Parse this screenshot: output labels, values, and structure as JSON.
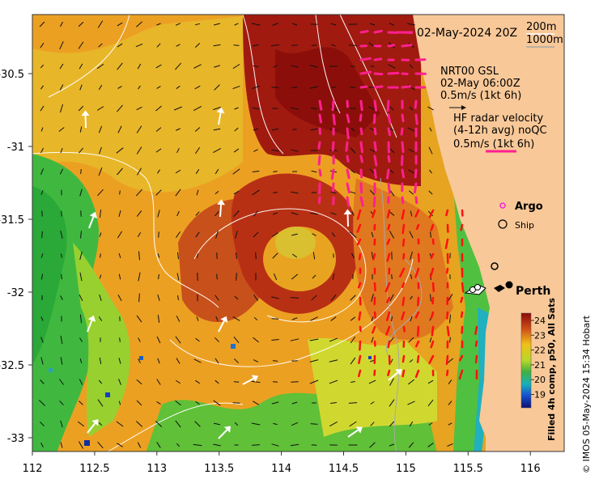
{
  "map": {
    "date_label": "02-May-2024 20Z",
    "contours": [
      "200m",
      "1000m"
    ],
    "model_label": [
      "NRT00 GSL",
      "02-May 06:00Z",
      "0.5m/s (1kt 6h)"
    ],
    "radar_label": [
      "HF radar velocity",
      "(4-12h avg) noQC",
      "0.5m/s (1kt 6h)"
    ],
    "argo_label": "Argo",
    "ship_label": "Ship",
    "city_label": "Perth",
    "credit": "© IMOS 05-May-2024 15:34 Hobart",
    "colorbar_title": "Filled 4h comp, p50, All Sats",
    "colorbar_ticks": [
      "24",
      "23",
      "22",
      "21",
      "20",
      "19"
    ],
    "x_ticks": [
      "112",
      "112.5",
      "113",
      "113.5",
      "114",
      "114.5",
      "115",
      "115.5",
      "116"
    ],
    "y_ticks": [
      "-30.5",
      "-31",
      "-31.5",
      "-32",
      "-32.5",
      "-33"
    ],
    "colors": {
      "land": "#f8c898",
      "hf_arrow": "#ff2090",
      "radar_arrow": "#ff1010",
      "model_arrow": "#111111",
      "argo_arrow": "#ffffff"
    }
  }
}
